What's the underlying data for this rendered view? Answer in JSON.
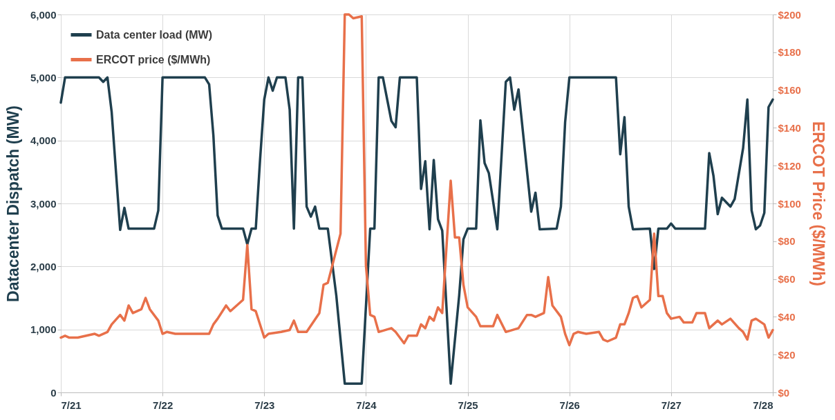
{
  "chart_data": {
    "type": "line",
    "ylabel": "Datacenter Dispatch (MW)",
    "y2label": "ERCOT Price ($/MWh)",
    "xlim": [
      "--07-21",
      "--07-28"
    ],
    "xticks": [
      {
        "value": "--07-21",
        "label": "7/21"
      },
      {
        "value": "--07-22",
        "label": "7/22"
      },
      {
        "value": "--07-23",
        "label": "7/23"
      },
      {
        "value": "--07-24",
        "label": "7/24"
      },
      {
        "value": "--07-25",
        "label": "7/25"
      },
      {
        "value": "--07-26",
        "label": "7/26"
      },
      {
        "value": "--07-27",
        "label": "7/27"
      },
      {
        "value": "--07-28",
        "label": "7/28"
      }
    ],
    "ylim": [
      0,
      6000
    ],
    "yticks": [
      {
        "value": 0,
        "label": "0"
      },
      {
        "value": 1000,
        "label": "1,000"
      },
      {
        "value": 2000,
        "label": "2,000"
      },
      {
        "value": 3000,
        "label": "3,000"
      },
      {
        "value": 4000,
        "label": "4,000"
      },
      {
        "value": 5000,
        "label": "5,000"
      },
      {
        "value": 6000,
        "label": "6,000"
      }
    ],
    "y2lim": [
      0,
      200
    ],
    "y2ticks": [
      {
        "value": 0,
        "label": "$0"
      },
      {
        "value": 20,
        "label": "$20"
      },
      {
        "value": 40,
        "label": "$40"
      },
      {
        "value": 60,
        "label": "$60"
      },
      {
        "value": 80,
        "label": "$80"
      },
      {
        "value": 100,
        "label": "$100"
      },
      {
        "value": 120,
        "label": "$120"
      },
      {
        "value": 140,
        "label": "$140"
      },
      {
        "value": 160,
        "label": "$160"
      },
      {
        "value": 180,
        "label": "$180"
      },
      {
        "value": 200,
        "label": "$200"
      }
    ],
    "grid": true,
    "legend": "top left",
    "series": [
      {
        "name": "Data center load (MW)",
        "color": "#1f3f4e",
        "x": [
          "--07-21T00:00",
          "--07-21T01:00",
          "--07-21T09:00",
          "--07-21T10:00",
          "--07-21T11:00",
          "--07-21T12:00",
          "--07-21T14:00",
          "--07-21T15:00",
          "--07-21T16:00",
          "--07-21T22:00",
          "--07-21T23:00",
          "--07-22T00:00",
          "--07-22T10:00",
          "--07-22T11:00",
          "--07-22T12:00",
          "--07-22T13:00",
          "--07-22T14:00",
          "--07-22T19:00",
          "--07-22T20:00",
          "--07-22T21:00",
          "--07-22T22:00",
          "--07-22T23:00",
          "--07-23T00:00",
          "--07-23T01:00",
          "--07-23T02:00",
          "--07-23T03:00",
          "--07-23T05:00",
          "--07-23T06:00",
          "--07-23T07:00",
          "--07-23T08:00",
          "--07-23T09:00",
          "--07-23T10:00",
          "--07-23T11:00",
          "--07-23T12:00",
          "--07-23T13:00",
          "--07-23T15:00",
          "--07-23T17:00",
          "--07-23T19:00",
          "--07-23T23:00",
          "--07-24T01:00",
          "--07-24T02:00",
          "--07-24T03:00",
          "--07-24T04:00",
          "--07-24T06:00",
          "--07-24T07:00",
          "--07-24T08:00",
          "--07-24T12:00",
          "--07-24T13:00",
          "--07-24T14:00",
          "--07-24T15:00",
          "--07-24T16:00",
          "--07-24T17:00",
          "--07-24T18:00",
          "--07-24T20:00",
          "--07-24T22:00",
          "--07-24T23:00",
          "--07-25T00:00",
          "--07-25T02:00",
          "--07-25T03:00",
          "--07-25T04:00",
          "--07-25T05:00",
          "--07-25T07:00",
          "--07-25T09:00",
          "--07-25T10:00",
          "--07-25T11:00",
          "--07-25T12:00",
          "--07-25T15:00",
          "--07-25T16:00",
          "--07-25T17:00",
          "--07-25T21:00",
          "--07-25T22:00",
          "--07-25T23:00",
          "--07-26T00:00",
          "--07-26T11:00",
          "--07-26T12:00",
          "--07-26T13:00",
          "--07-26T14:00",
          "--07-26T15:00",
          "--07-26T19:00",
          "--07-26T20:00",
          "--07-26T21:00",
          "--07-26T23:00",
          "--07-27T00:00",
          "--07-27T01:00",
          "--07-27T08:00",
          "--07-27T09:00",
          "--07-27T10:00",
          "--07-27T11:00",
          "--07-27T12:00",
          "--07-27T14:00",
          "--07-27T15:00",
          "--07-27T17:00",
          "--07-27T18:00",
          "--07-27T19:00",
          "--07-27T20:00",
          "--07-27T21:00",
          "--07-27T22:00",
          "--07-27T23:00",
          "--07-28T00:00"
        ],
        "values": [
          4600,
          5000,
          5000,
          4930,
          5000,
          4450,
          2580,
          2930,
          2600,
          2600,
          2890,
          5000,
          5000,
          4890,
          4080,
          2810,
          2600,
          2600,
          2350,
          2600,
          2600,
          3680,
          4650,
          5000,
          4790,
          5000,
          5000,
          4490,
          2600,
          5000,
          5000,
          2950,
          2790,
          2950,
          2600,
          2600,
          1540,
          140,
          140,
          2600,
          2600,
          5000,
          5000,
          4310,
          4210,
          5000,
          5000,
          3230,
          3670,
          2590,
          3690,
          2750,
          2570,
          140,
          1540,
          2430,
          2600,
          2600,
          4320,
          3640,
          3480,
          2590,
          4930,
          5000,
          4490,
          4810,
          2870,
          3170,
          2590,
          2600,
          2950,
          4290,
          5000,
          5000,
          3780,
          4370,
          2950,
          2590,
          2600,
          1960,
          2600,
          2600,
          2680,
          2600,
          2600,
          3800,
          3440,
          2830,
          3090,
          2950,
          3070,
          3880,
          4650,
          2890,
          2590,
          2650,
          2850,
          4530,
          4650
        ]
      },
      {
        "name": "ERCOT price ($/MWh)",
        "color": "#e8704a",
        "axis": "y2",
        "x": [
          "--07-21T00:00",
          "--07-21T01:00",
          "--07-21T02:00",
          "--07-21T04:00",
          "--07-21T06:00",
          "--07-21T08:00",
          "--07-21T09:00",
          "--07-21T11:00",
          "--07-21T12:00",
          "--07-21T14:00",
          "--07-21T15:00",
          "--07-21T16:00",
          "--07-21T17:00",
          "--07-21T19:00",
          "--07-21T20:00",
          "--07-21T21:00",
          "--07-21T23:00",
          "--07-22T00:00",
          "--07-22T01:00",
          "--07-22T03:00",
          "--07-22T06:00",
          "--07-22T08:00",
          "--07-22T11:00",
          "--07-22T12:00",
          "--07-22T13:00",
          "--07-22T15:00",
          "--07-22T16:00",
          "--07-22T17:00",
          "--07-22T19:00",
          "--07-22T20:00",
          "--07-22T21:00",
          "--07-22T22:00",
          "--07-23T00:00",
          "--07-23T01:00",
          "--07-23T04:00",
          "--07-23T06:00",
          "--07-23T07:00",
          "--07-23T08:00",
          "--07-23T10:00",
          "--07-23T13:00",
          "--07-23T14:00",
          "--07-23T15:00",
          "--07-23T18:00",
          "--07-23T19:00",
          "--07-23T20:00",
          "--07-23T21:00",
          "--07-23T23:00",
          "--07-24T00:00",
          "--07-24T01:00",
          "--07-24T02:00",
          "--07-24T03:00",
          "--07-24T06:00",
          "--07-24T07:00",
          "--07-24T09:00",
          "--07-24T10:00",
          "--07-24T12:00",
          "--07-24T13:00",
          "--07-24T14:00",
          "--07-24T15:00",
          "--07-24T16:00",
          "--07-24T17:00",
          "--07-24T18:00",
          "--07-24T20:00",
          "--07-24T21:00",
          "--07-24T22:00",
          "--07-24T23:00",
          "--07-25T00:00",
          "--07-25T02:00",
          "--07-25T03:00",
          "--07-25T06:00",
          "--07-25T07:00",
          "--07-25T09:00",
          "--07-25T12:00",
          "--07-25T14:00",
          "--07-25T15:00",
          "--07-25T16:00",
          "--07-25T18:00",
          "--07-25T19:00",
          "--07-25T20:00",
          "--07-25T22:00",
          "--07-25T23:00",
          "--07-26T00:00",
          "--07-26T01:00",
          "--07-26T02:00",
          "--07-26T04:00",
          "--07-26T07:00",
          "--07-26T08:00",
          "--07-26T09:00",
          "--07-26T11:00",
          "--07-26T12:00",
          "--07-26T13:00",
          "--07-26T14:00",
          "--07-26T15:00",
          "--07-26T16:00",
          "--07-26T17:00",
          "--07-26T19:00",
          "--07-26T20:00",
          "--07-26T21:00",
          "--07-26T22:00",
          "--07-26T23:00",
          "--07-27T00:00",
          "--07-27T02:00",
          "--07-27T03:00",
          "--07-27T05:00",
          "--07-27T06:00",
          "--07-27T08:00",
          "--07-27T09:00",
          "--07-27T11:00",
          "--07-27T12:00",
          "--07-27T14:00",
          "--07-27T16:00",
          "--07-27T17:00",
          "--07-27T18:00",
          "--07-27T19:00",
          "--07-27T20:00",
          "--07-27T22:00",
          "--07-27T23:00",
          "--07-28T00:00"
        ],
        "values": [
          29,
          30,
          29,
          29,
          30,
          31,
          30,
          32,
          36,
          41,
          38,
          46,
          42,
          44,
          50,
          44,
          38,
          31,
          32,
          31,
          31,
          31,
          31,
          36,
          39,
          46,
          43,
          45,
          49,
          78,
          44,
          43,
          29,
          31,
          32,
          33,
          38,
          32,
          32,
          42,
          57,
          58,
          84,
          200,
          200,
          198,
          199,
          67,
          41,
          40,
          32,
          34,
          32,
          26,
          30,
          30,
          36,
          34,
          40,
          38,
          45,
          42,
          112,
          82,
          82,
          57,
          45,
          40,
          35,
          35,
          41,
          32,
          34,
          41,
          41,
          40,
          42,
          61,
          46,
          40,
          31,
          25,
          31,
          32,
          31,
          32,
          28,
          27,
          29,
          36,
          36,
          42,
          50,
          51,
          45,
          49,
          84,
          51,
          51,
          42,
          39,
          40,
          37,
          37,
          42,
          42,
          34,
          38,
          36,
          39,
          34,
          32,
          28,
          38,
          39,
          36,
          29,
          33
        ]
      }
    ]
  }
}
